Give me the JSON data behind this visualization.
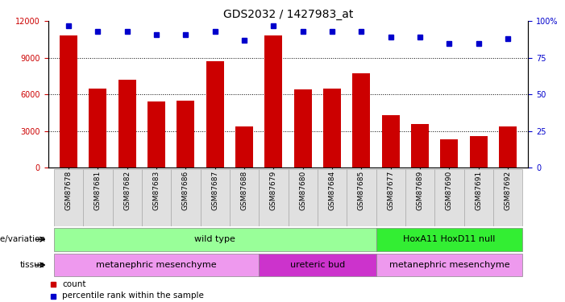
{
  "title": "GDS2032 / 1427983_at",
  "samples": [
    "GSM87678",
    "GSM87681",
    "GSM87682",
    "GSM87683",
    "GSM87686",
    "GSM87687",
    "GSM87688",
    "GSM87679",
    "GSM87680",
    "GSM87684",
    "GSM87685",
    "GSM87677",
    "GSM87689",
    "GSM87690",
    "GSM87691",
    "GSM87692"
  ],
  "counts": [
    10800,
    6500,
    7200,
    5400,
    5500,
    8700,
    3400,
    10800,
    6400,
    6500,
    7700,
    4300,
    3600,
    2300,
    2600,
    3400
  ],
  "percentile": [
    97,
    93,
    93,
    91,
    91,
    93,
    87,
    97,
    93,
    93,
    93,
    89,
    89,
    85,
    85,
    88
  ],
  "ylim_left": [
    0,
    12000
  ],
  "ylim_right": [
    0,
    100
  ],
  "yticks_left": [
    0,
    3000,
    6000,
    9000,
    12000
  ],
  "yticks_right": [
    0,
    25,
    50,
    75,
    100
  ],
  "bar_color": "#cc0000",
  "dot_color": "#0000cc",
  "genotype_groups": [
    {
      "label": "wild type",
      "start": 0,
      "end": 11,
      "color": "#99ff99"
    },
    {
      "label": "HoxA11 HoxD11 null",
      "start": 11,
      "end": 16,
      "color": "#33ee33"
    }
  ],
  "tissue_groups": [
    {
      "label": "metanephric mesenchyme",
      "start": 0,
      "end": 7,
      "color": "#ee99ee"
    },
    {
      "label": "ureteric bud",
      "start": 7,
      "end": 11,
      "color": "#cc33cc"
    },
    {
      "label": "metanephric mesenchyme",
      "start": 11,
      "end": 16,
      "color": "#ee99ee"
    }
  ],
  "title_fontsize": 10,
  "tick_fontsize": 7,
  "bar_color_left": "#cc0000",
  "dot_color_right": "#0000cc"
}
